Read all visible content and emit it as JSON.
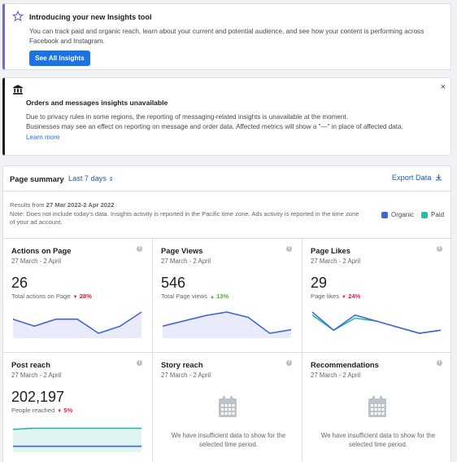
{
  "banner_insights": {
    "title": "Introducing your new Insights tool",
    "body": "You can track paid and organic reach, learn about your current and potential audience, and see how your content is performing across Facebook and Instagram.",
    "button": "See All Insights"
  },
  "banner_messages": {
    "title": "Orders and messages insights unavailable",
    "line1": "Due to privacy rules in some regions, the reporting of messaging-related insights is unavailable at the moment.",
    "line2": "Businesses may see an effect on reporting on message and order data. Affected metrics will show a \"—\" in place of affected data.",
    "link": "Learn more",
    "close": "×"
  },
  "summary": {
    "title": "Page summary",
    "range": "Last 7 days",
    "export": "Export Data",
    "results_prefix": "Results from ",
    "results_range": "27 Mar 2022-2 Apr 2022",
    "note": "Note: Does not include today's data. Insights activity is reported in the Pacific time zone. Ads activity is reported in the time zone of your ad account.",
    "legend_organic": "Organic",
    "legend_paid": "Paid",
    "colors": {
      "organic": "#4267d4",
      "paid": "#2abba7"
    }
  },
  "tiles": [
    {
      "name": "Actions on Page",
      "date": "27 March - 2 April",
      "value": "26",
      "sub": "Total actions on Page",
      "pct": "28%",
      "dir": "down",
      "series": [
        [
          3,
          2,
          3,
          3,
          1,
          2,
          4
        ]
      ]
    },
    {
      "name": "Page Views",
      "date": "27 March - 2 April",
      "value": "546",
      "sub": "Total Page views",
      "pct": "13%",
      "dir": "up",
      "series": [
        [
          70,
          85,
          100,
          110,
          95,
          50,
          60
        ]
      ]
    },
    {
      "name": "Page Likes",
      "date": "27 March - 2 April",
      "value": "29",
      "sub": "Page likes",
      "pct": "24%",
      "dir": "down",
      "series": [
        [
          8,
          3,
          7,
          6,
          4,
          2,
          3
        ],
        [
          9,
          3,
          8,
          6,
          4,
          2,
          3
        ]
      ]
    },
    {
      "name": "Post reach",
      "date": "27 March - 2 April",
      "value": "202,197",
      "sub": "People reached",
      "pct": "5%",
      "dir": "down",
      "series": [
        [
          17,
          18,
          18,
          18,
          18,
          18,
          18
        ],
        [
          1,
          1,
          1,
          1,
          1,
          1,
          1
        ]
      ]
    },
    {
      "name": "Story reach",
      "date": "27 March - 2 April",
      "insufficient": "We have insufficient data to show for the selected time period."
    },
    {
      "name": "Recommendations",
      "date": "27 March - 2 April",
      "insufficient": "We have insufficient data to show for the selected time period."
    }
  ]
}
